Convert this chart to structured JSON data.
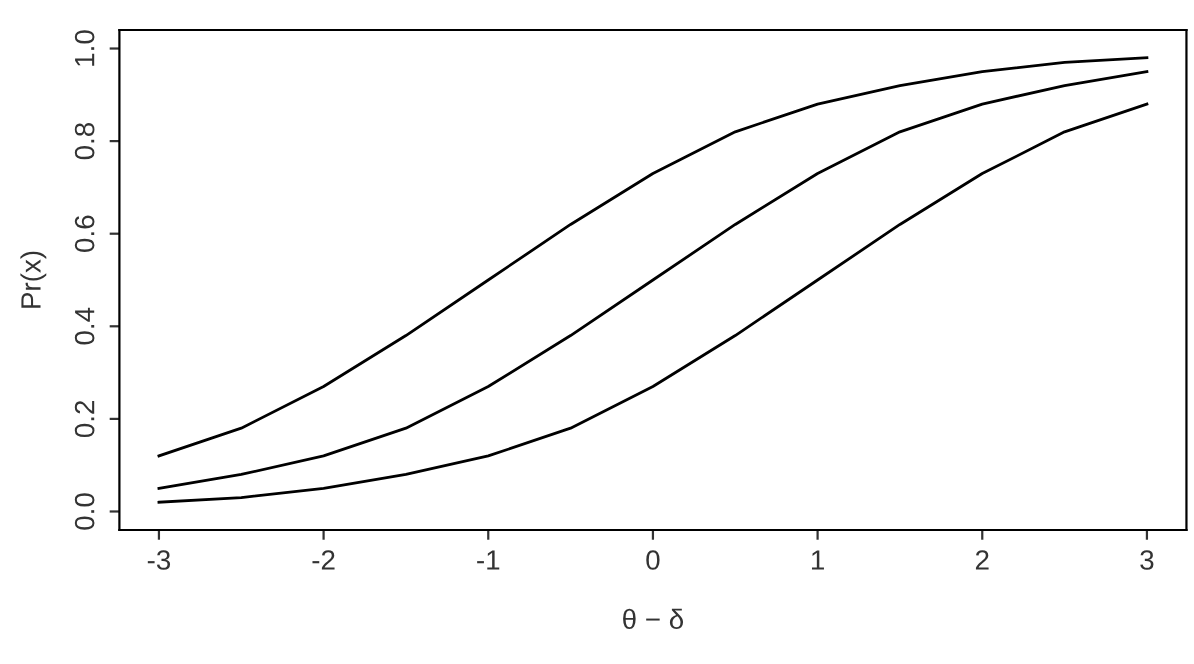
{
  "chart_data": {
    "type": "line",
    "xlabel": "θ − δ",
    "ylabel": "Pr(x)",
    "x": [
      -3,
      -2.5,
      -2,
      -1.5,
      -1,
      -0.5,
      0,
      0.5,
      1,
      1.5,
      2,
      2.5,
      3
    ],
    "series": [
      {
        "color": "#000000",
        "values": [
          0.12,
          0.18,
          0.27,
          0.38,
          0.5,
          0.62,
          0.73,
          0.82,
          0.88,
          0.92,
          0.95,
          0.97,
          0.98
        ]
      },
      {
        "color": "#000000",
        "values": [
          0.05,
          0.08,
          0.12,
          0.18,
          0.27,
          0.38,
          0.5,
          0.62,
          0.73,
          0.82,
          0.88,
          0.92,
          0.95
        ]
      },
      {
        "color": "#000000",
        "values": [
          0.02,
          0.03,
          0.05,
          0.08,
          0.12,
          0.18,
          0.27,
          0.38,
          0.5,
          0.62,
          0.73,
          0.82,
          0.88
        ]
      }
    ],
    "xlim": [
      -3.24,
      3.24
    ],
    "ylim": [
      -0.04,
      1.04
    ],
    "xticks": [
      -3,
      -2,
      -1,
      0,
      1,
      2,
      3
    ],
    "yticks": [
      {
        "value": 0,
        "label": "0.0"
      },
      {
        "value": 0.2,
        "label": "0.2"
      },
      {
        "value": 0.4,
        "label": "0.4"
      },
      {
        "value": 0.6,
        "label": "0.6"
      },
      {
        "value": 0.8,
        "label": "0.8"
      },
      {
        "value": 1,
        "label": "1.0"
      }
    ],
    "grid": false,
    "legend": false,
    "marker": "none",
    "line_style": "solid"
  }
}
